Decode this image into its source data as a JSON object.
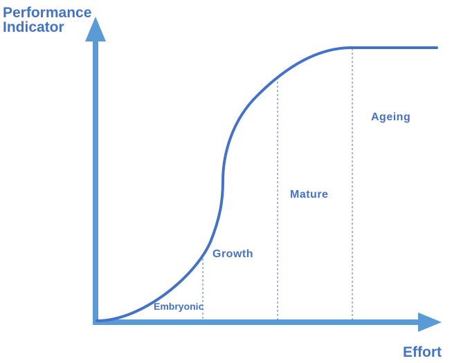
{
  "diagram": {
    "y_axis_label_line1": "Performance",
    "y_axis_label_line2": "Indicator",
    "x_axis_label": "Effort",
    "phases": {
      "embryonic": "Embryonic",
      "growth": "Growth",
      "mature": "Mature",
      "ageing": "Ageing"
    },
    "colors": {
      "axis": "#5b9bd5",
      "curve": "#4472c4",
      "text": "#4472c4",
      "divider": "#4472c4"
    }
  }
}
